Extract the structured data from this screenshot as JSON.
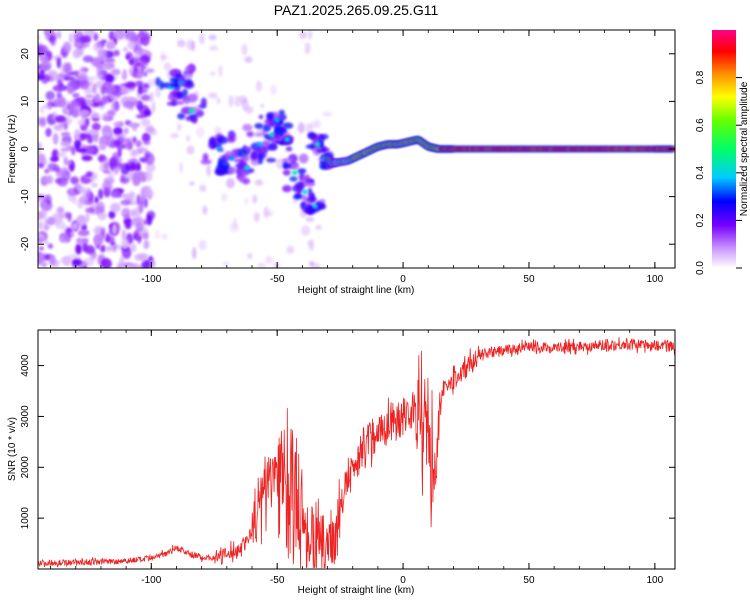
{
  "title": "PAZ1.2025.265.09.25.G11",
  "chart_data": [
    {
      "type": "heatmap",
      "xlabel": "Height of straight line (km)",
      "ylabel": "Frequency (Hz)",
      "xlim": [
        -145,
        108
      ],
      "ylim": [
        -25,
        25
      ],
      "xticks": [
        -100,
        -50,
        0,
        50,
        100
      ],
      "yticks": [
        -20,
        -10,
        0,
        10,
        20
      ],
      "xtick_labels": [
        "-100",
        "-50",
        "0",
        "50",
        "100"
      ],
      "ytick_labels": [
        "-20",
        "-10",
        "0",
        "10",
        "20"
      ],
      "colorbar": {
        "label": "Normalized spectral amplitude",
        "range": [
          0,
          1
        ],
        "ticks": [
          0.0,
          0.2,
          0.4,
          0.6,
          0.8
        ],
        "tick_labels": [
          "0.0",
          "0.2",
          "0.4",
          "0.6",
          "0.8"
        ],
        "colors": [
          "#ffffff",
          "#9933ff",
          "#0000ff",
          "#00ffff",
          "#00ff00",
          "#ffff00",
          "#ff0000",
          "#ff00aa"
        ]
      },
      "ridge": {
        "x": [
          -92,
          -86,
          -80,
          -74,
          -68,
          -62,
          -56,
          -50,
          -46,
          -42,
          -38,
          -34,
          -30,
          -28,
          -26,
          -22,
          -18,
          -14,
          -10,
          -6,
          -2,
          2,
          6,
          10,
          14,
          20,
          30,
          40,
          50,
          60,
          70,
          80,
          90,
          100,
          108
        ],
        "y": [
          13,
          9,
          4,
          1,
          -1,
          -3,
          1,
          2,
          -1,
          -6,
          -9,
          1,
          -2,
          -3,
          -2.8,
          -2.5,
          -1.5,
          -0.5,
          0.5,
          1,
          1,
          1.5,
          2,
          0.5,
          0,
          0,
          0,
          0,
          0,
          0,
          0,
          0,
          0,
          0,
          0
        ]
      }
    },
    {
      "type": "line",
      "xlabel": "Height of straight line (km)",
      "ylabel": "SNR (10 * v/v)",
      "xlim": [
        -145,
        108
      ],
      "ylim": [
        0,
        4700
      ],
      "xticks": [
        -100,
        -50,
        0,
        50,
        100
      ],
      "yticks": [
        1000,
        2000,
        3000,
        4000
      ],
      "xtick_labels": [
        "-100",
        "-50",
        "0",
        "50",
        "100"
      ],
      "ytick_labels": [
        "1000",
        "2000",
        "3000",
        "4000"
      ],
      "color": "#ee2222",
      "series": [
        {
          "x": [
            -145,
            -130,
            -115,
            -100,
            -95,
            -90,
            -85,
            -80,
            -75,
            -70,
            -65,
            -60,
            -58,
            -55,
            -52,
            -50,
            -48,
            -46,
            -44,
            -42,
            -40,
            -38,
            -35,
            -32,
            -30,
            -28,
            -26,
            -25,
            -23,
            -21,
            -20,
            -18,
            -15,
            -10,
            -5,
            0,
            3,
            5,
            8,
            10,
            12,
            13,
            14,
            15,
            17,
            20,
            25,
            30,
            40,
            50,
            60,
            70,
            80,
            90,
            100,
            108
          ],
          "y": [
            120,
            130,
            150,
            200,
            300,
            420,
            300,
            230,
            220,
            280,
            400,
            700,
            1100,
            1500,
            1800,
            2000,
            1700,
            1400,
            1500,
            1300,
            1000,
            700,
            500,
            450,
            500,
            600,
            800,
            1100,
            1600,
            1850,
            1950,
            2200,
            2500,
            2700,
            2850,
            3000,
            3100,
            3200,
            2800,
            2400,
            2000,
            1900,
            2800,
            3300,
            3550,
            3700,
            3950,
            4200,
            4300,
            4350,
            4350,
            4380,
            4400,
            4420,
            4400,
            4380
          ]
        }
      ]
    }
  ]
}
